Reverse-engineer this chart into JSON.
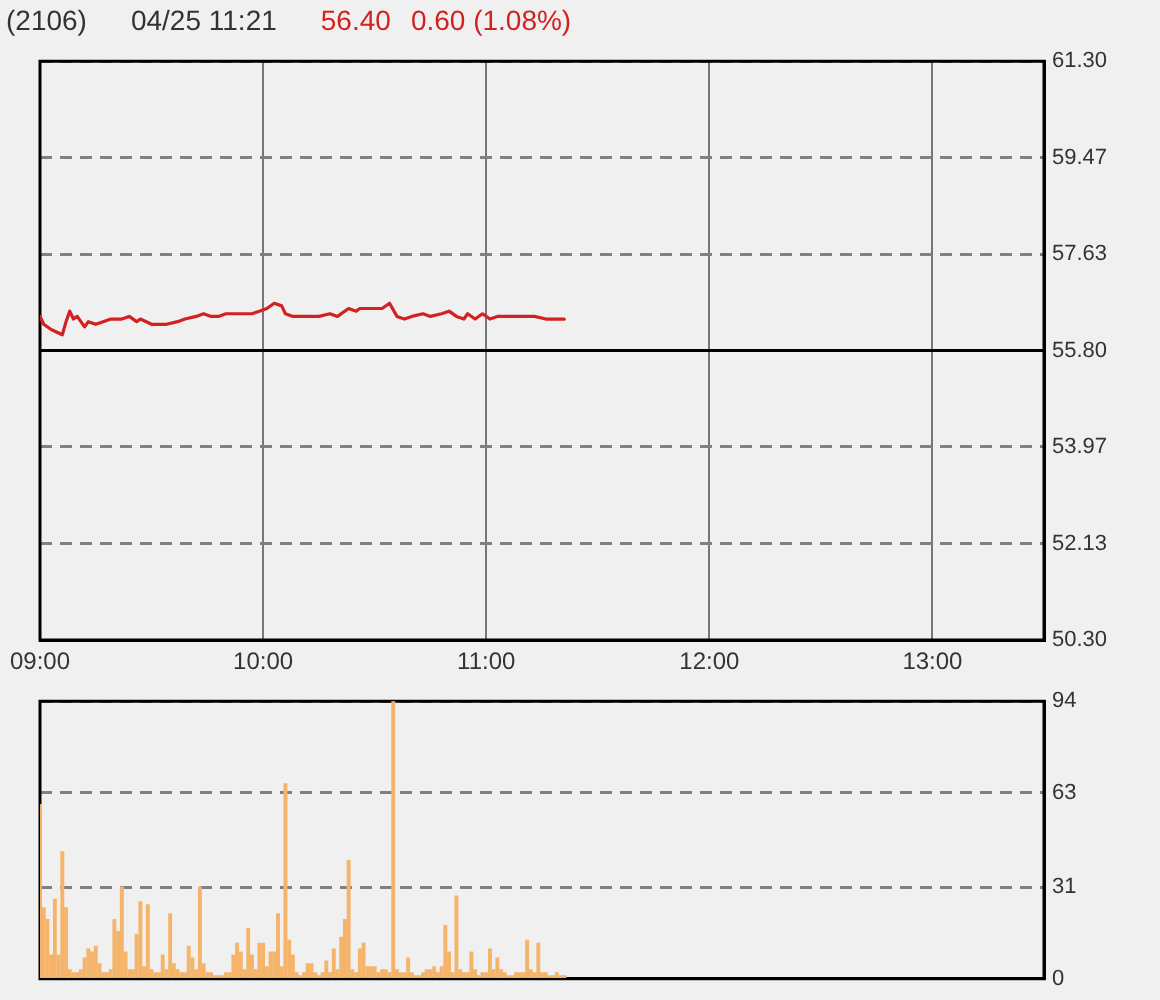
{
  "chart_data": [
    {
      "type": "line",
      "title": "(2106)",
      "subtitle": "04/25 11:21",
      "annotations": [
        "56.40",
        "0.60 (1.08%)"
      ],
      "x": [
        9,
        9.0167,
        9.05,
        9.1,
        9.1167,
        9.1333,
        9.15,
        9.1667,
        9.2,
        9.2167,
        9.25,
        9.2833,
        9.3167,
        9.3667,
        9.4,
        9.4333,
        9.45,
        9.5,
        9.5333,
        9.5667,
        9.6167,
        9.65,
        9.7,
        9.7333,
        9.7667,
        9.8,
        9.8333,
        9.8667,
        9.9,
        9.95,
        9.9833,
        10.0167,
        10.05,
        10.0833,
        10.1,
        10.1333,
        10.1833,
        10.2167,
        10.25,
        10.3,
        10.3333,
        10.3833,
        10.4167,
        10.4333,
        10.4833,
        10.5333,
        10.5667,
        10.6,
        10.6333,
        10.6667,
        10.7167,
        10.75,
        10.8,
        10.8333,
        10.8667,
        10.9,
        10.9167,
        10.95,
        10.9833,
        11.0167,
        11.05,
        11.1,
        11.15,
        11.1833,
        11.2167,
        11.2667,
        11.3167,
        11.35
      ],
      "values": [
        56.45,
        56.3,
        56.2,
        56.1,
        56.35,
        56.55,
        56.4,
        56.45,
        56.25,
        56.35,
        56.3,
        56.35,
        56.4,
        56.4,
        56.45,
        56.35,
        56.4,
        56.3,
        56.3,
        56.3,
        56.35,
        56.4,
        56.45,
        56.5,
        56.45,
        56.45,
        56.5,
        56.5,
        56.5,
        56.5,
        56.55,
        56.6,
        56.7,
        56.65,
        56.5,
        56.45,
        56.45,
        56.45,
        56.45,
        56.5,
        56.45,
        56.6,
        56.55,
        56.6,
        56.6,
        56.6,
        56.7,
        56.45,
        56.4,
        56.45,
        56.5,
        56.45,
        56.5,
        56.55,
        56.45,
        56.4,
        56.5,
        56.4,
        56.5,
        56.4,
        56.45,
        56.45,
        56.45,
        56.45,
        56.45,
        56.4,
        56.4,
        56.4
      ],
      "color": "#d42020",
      "marker": "none",
      "line_style": "solid",
      "xlim": [
        9,
        13.5
      ],
      "xticks": [
        {
          "value": 9,
          "label": "09:00"
        },
        {
          "value": 10,
          "label": "10:00"
        },
        {
          "value": 11,
          "label": "11:00"
        },
        {
          "value": 12,
          "label": "12:00"
        },
        {
          "value": 13,
          "label": "13:00"
        }
      ],
      "ylim": [
        50.3,
        61.3
      ],
      "yticks": [
        {
          "value": 50.3,
          "label": "50.30"
        },
        52.13,
        53.97,
        {
          "value": 55.8,
          "label": "55.80"
        },
        57.63,
        59.47,
        {
          "value": 61.3,
          "label": "61.30"
        }
      ],
      "grid": true,
      "ref_lines": [
        {
          "axis": "y",
          "value": 55.8,
          "color": "#000000"
        }
      ]
    },
    {
      "type": "bar",
      "x": [
        9,
        9.0167,
        9.0333,
        9.05,
        9.0667,
        9.0833,
        9.1,
        9.1167,
        9.1333,
        9.15,
        9.1667,
        9.1833,
        9.2,
        9.2167,
        9.2333,
        9.25,
        9.2667,
        9.2833,
        9.3,
        9.3167,
        9.3333,
        9.35,
        9.3667,
        9.3833,
        9.4,
        9.4167,
        9.4333,
        9.45,
        9.4667,
        9.4833,
        9.5,
        9.5167,
        9.5333,
        9.55,
        9.5667,
        9.5833,
        9.6,
        9.6167,
        9.6333,
        9.65,
        9.6667,
        9.6833,
        9.7,
        9.7167,
        9.7333,
        9.75,
        9.7667,
        9.7833,
        9.8,
        9.8167,
        9.8333,
        9.85,
        9.8667,
        9.8833,
        9.9,
        9.9167,
        9.9333,
        9.95,
        9.9667,
        9.9833,
        10,
        10.0167,
        10.0333,
        10.05,
        10.0667,
        10.0833,
        10.1,
        10.1167,
        10.1333,
        10.15,
        10.1667,
        10.1833,
        10.2,
        10.2167,
        10.2333,
        10.25,
        10.2667,
        10.2833,
        10.3,
        10.3167,
        10.3333,
        10.35,
        10.3667,
        10.3833,
        10.4,
        10.4167,
        10.4333,
        10.45,
        10.4667,
        10.4833,
        10.5,
        10.5167,
        10.5333,
        10.55,
        10.5667,
        10.5833,
        10.6,
        10.6167,
        10.6333,
        10.65,
        10.6667,
        10.6833,
        10.7,
        10.7167,
        10.7333,
        10.75,
        10.7667,
        10.7833,
        10.8,
        10.8167,
        10.8333,
        10.85,
        10.8667,
        10.8833,
        10.9,
        10.9167,
        10.9333,
        10.95,
        10.9667,
        10.9833,
        11,
        11.0167,
        11.0333,
        11.05,
        11.0667,
        11.0833,
        11.1,
        11.1167,
        11.1333,
        11.15,
        11.1667,
        11.1833,
        11.2,
        11.2167,
        11.2333,
        11.25,
        11.2667,
        11.2833,
        11.3,
        11.3167,
        11.3333,
        11.35
      ],
      "values": [
        59,
        24,
        20,
        8,
        27,
        8,
        43,
        24,
        3,
        2,
        2,
        3,
        7,
        10,
        9,
        11,
        5,
        2,
        2,
        3,
        20,
        16,
        31,
        9,
        3,
        3,
        15,
        26,
        4,
        25,
        3,
        2,
        2,
        8,
        3,
        22,
        5,
        3,
        2,
        2,
        11,
        7,
        3,
        31,
        5,
        2,
        2,
        1,
        1,
        1,
        2,
        2,
        8,
        12,
        9,
        3,
        17,
        8,
        3,
        12,
        12,
        4,
        9,
        9,
        22,
        4,
        66,
        13,
        8,
        2,
        1,
        2,
        5,
        5,
        2,
        1,
        2,
        6,
        2,
        10,
        3,
        14,
        20,
        40,
        3,
        2,
        10,
        12,
        4,
        4,
        4,
        2,
        3,
        3,
        2,
        94,
        3,
        2,
        2,
        7,
        2,
        1,
        1,
        2,
        3,
        3,
        4,
        2,
        4,
        18,
        9,
        2,
        28,
        3,
        2,
        2,
        9,
        3,
        1,
        2,
        2,
        10,
        3,
        7,
        3,
        2,
        1,
        1,
        2,
        2,
        2,
        13,
        3,
        2,
        12,
        2,
        2,
        1,
        1,
        2,
        1,
        1
      ],
      "color": "#f5b46a",
      "xlim": [
        9,
        13.5
      ],
      "ylim": [
        0,
        94
      ],
      "yticks": [
        0,
        31,
        63,
        94
      ],
      "grid": "y",
      "tick_labels": "y"
    }
  ]
}
